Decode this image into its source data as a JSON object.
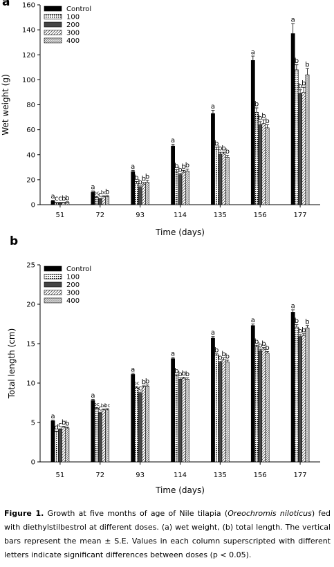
{
  "chart_data": [
    {
      "type": "bar",
      "panel_label": "a",
      "categories": [
        "51",
        "72",
        "93",
        "114",
        "135",
        "156",
        "177"
      ],
      "xlabel": "Time (days)",
      "ylabel": "Wet weight (g)",
      "ylim": [
        0,
        160
      ],
      "yticks": [
        0,
        20,
        40,
        60,
        80,
        100,
        120,
        140,
        160
      ],
      "legend": "top-left",
      "series": [
        {
          "name": "Control",
          "values": [
            3,
            10,
            26.5,
            47,
            73,
            115.5,
            137
          ],
          "errors": [
            0.5,
            1,
            1,
            1.5,
            2.5,
            3.5,
            8
          ],
          "letters": [
            "a",
            "a",
            "a",
            "a",
            "a",
            "a",
            "a"
          ]
        },
        {
          "name": "100",
          "values": [
            1.5,
            6,
            17,
            26.5,
            44,
            74,
            108
          ],
          "errors": [
            0.3,
            0.6,
            1.5,
            1.5,
            2,
            3.5,
            4
          ],
          "letters": [
            "c",
            "bc",
            "b",
            "b",
            "b",
            "b",
            "b"
          ]
        },
        {
          "name": "200",
          "values": [
            1.5,
            4.5,
            14,
            24,
            40.5,
            64,
            89
          ],
          "errors": [
            0.3,
            0.6,
            1,
            1,
            1.5,
            2.5,
            3
          ],
          "letters": [
            "c",
            "c",
            "b",
            "b",
            "b",
            "b",
            "b"
          ]
        },
        {
          "name": "300",
          "values": [
            1.5,
            6.5,
            16.5,
            26,
            40.5,
            65,
            90
          ],
          "errors": [
            0.3,
            0.6,
            1.2,
            1.5,
            1.5,
            3,
            4
          ],
          "letters": [
            "b",
            "bc",
            "b",
            "b",
            "b",
            "b",
            "b"
          ]
        },
        {
          "name": "400",
          "values": [
            2,
            6.5,
            18,
            27,
            38,
            61.5,
            104
          ],
          "errors": [
            0.3,
            0.7,
            1.5,
            1.5,
            1.5,
            2.5,
            5
          ],
          "letters": [
            "b",
            "b",
            "b",
            "b",
            "b",
            "b",
            "b"
          ]
        }
      ]
    },
    {
      "type": "bar",
      "panel_label": "b",
      "categories": [
        "51",
        "72",
        "93",
        "114",
        "135",
        "156",
        "177"
      ],
      "xlabel": "Time (days)",
      "ylabel": "Total length (cm)",
      "ylim": [
        0,
        25
      ],
      "yticks": [
        0,
        5,
        10,
        15,
        20,
        25
      ],
      "legend": "top-left",
      "series": [
        {
          "name": "Control",
          "values": [
            5.2,
            7.8,
            11.1,
            13.1,
            15.7,
            17.3,
            19
          ],
          "errors": [
            0.1,
            0.15,
            0.15,
            0.15,
            0.2,
            0.2,
            0.3
          ],
          "letters": [
            "a",
            "a",
            "a",
            "a",
            "a",
            "a",
            "a"
          ]
        },
        {
          "name": "100",
          "values": [
            3.8,
            6.8,
            9.4,
            10.9,
            13.5,
            14.6,
            17.1
          ],
          "errors": [
            0.1,
            0.1,
            0.15,
            0.15,
            0.2,
            0.2,
            0.3
          ],
          "letters": [
            "d",
            "bc",
            "bc",
            "b",
            "b",
            "b",
            "b"
          ]
        },
        {
          "name": "200",
          "values": [
            4.1,
            6.2,
            8.7,
            10.5,
            12.6,
            14.1,
            15.9
          ],
          "errors": [
            0.1,
            0.1,
            0.15,
            0.15,
            0.15,
            0.2,
            0.25
          ],
          "letters": [
            "c",
            "c",
            "c",
            "b",
            "b",
            "b",
            "b"
          ]
        },
        {
          "name": "300",
          "values": [
            4.4,
            6.6,
            9.5,
            10.6,
            13.0,
            14.3,
            16.0
          ],
          "errors": [
            0.1,
            0.1,
            0.15,
            0.15,
            0.2,
            0.2,
            0.25
          ],
          "letters": [
            "b",
            "bc",
            "b",
            "b",
            "b",
            "b",
            "b"
          ]
        },
        {
          "name": "400",
          "values": [
            4.3,
            6.6,
            9.6,
            10.5,
            12.7,
            13.8,
            17.0
          ],
          "errors": [
            0.1,
            0.15,
            0.15,
            0.15,
            0.2,
            0.2,
            0.3
          ],
          "letters": [
            "b",
            "bc",
            "b",
            "b",
            "b",
            "b",
            "b"
          ]
        }
      ]
    }
  ],
  "caption": {
    "figure_label": "Figure 1.",
    "text_before_species": "Growth at five months of age of Nile tilapia (",
    "species": "Oreochromis niloticus",
    "text_after_species": ") fed with diethylstilbestrol at different doses. (a) wet weight, (b) total length. The vertical bars represent the mean ± S.E. Values in each column superscripted with different letters indicate significant differences between doses (p < 0.05)."
  }
}
